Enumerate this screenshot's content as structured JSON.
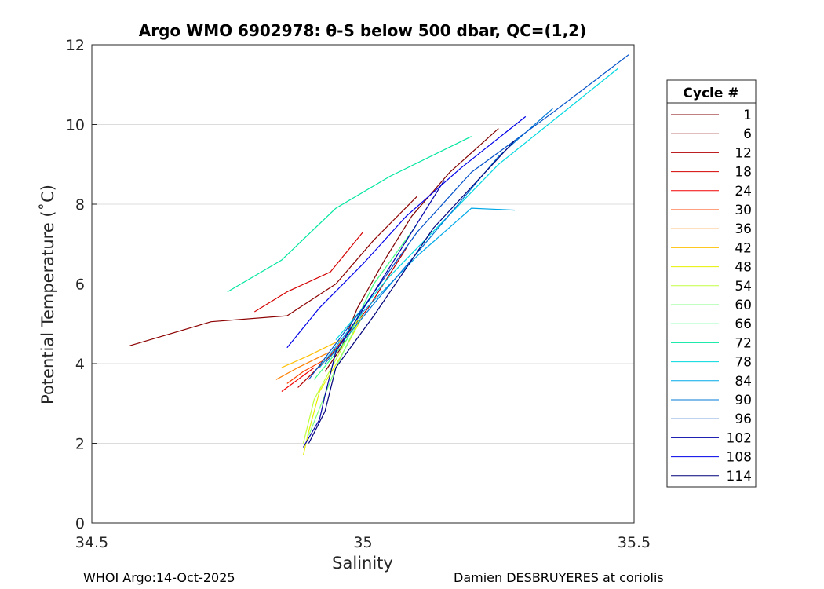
{
  "chart_data": {
    "type": "line",
    "title": "Argo WMO 6902978: θ-S below 500 dbar,  QC=(1,2)",
    "xlabel": "Salinity",
    "ylabel": "Potential Temperature (˚C)",
    "xlim": [
      34.5,
      35.5
    ],
    "ylim": [
      0,
      12
    ],
    "x_ticks": [
      34.5,
      35,
      35.5
    ],
    "x_tick_labels": [
      "34.5",
      "35",
      "35.5"
    ],
    "y_ticks": [
      0,
      2,
      4,
      6,
      8,
      10,
      12
    ],
    "y_tick_labels": [
      "0",
      "2",
      "4",
      "6",
      "8",
      "10",
      "12"
    ],
    "grid": true,
    "legend_title": "Cycle #",
    "legend_position": "right-outside",
    "series": [
      {
        "name": "1",
        "color": "#800000",
        "x": [
          34.93,
          34.96,
          34.99,
          35.04,
          35.09,
          35.16,
          35.25
        ],
        "y": [
          3.8,
          4.4,
          5.4,
          6.6,
          7.7,
          8.8,
          9.9
        ]
      },
      {
        "name": "6",
        "color": "#8c0000",
        "x": [
          34.57,
          34.72,
          34.86,
          34.95,
          35.02,
          35.1
        ],
        "y": [
          4.45,
          5.05,
          5.2,
          6.0,
          7.1,
          8.2
        ]
      },
      {
        "name": "12",
        "color": "#b30000",
        "x": [
          34.88,
          34.94,
          35.01,
          35.08
        ],
        "y": [
          3.4,
          4.2,
          5.4,
          6.9
        ]
      },
      {
        "name": "18",
        "color": "#d40000",
        "x": [
          34.8,
          34.86,
          34.94,
          35.0
        ],
        "y": [
          5.3,
          5.8,
          6.3,
          7.3
        ]
      },
      {
        "name": "24",
        "color": "#f20000",
        "x": [
          34.85,
          34.88,
          34.91
        ],
        "y": [
          3.3,
          3.6,
          3.9
        ]
      },
      {
        "name": "30",
        "color": "#ff4000",
        "x": [
          34.86,
          34.89,
          34.93
        ],
        "y": [
          3.5,
          3.8,
          4.1
        ]
      },
      {
        "name": "36",
        "color": "#ff8000",
        "x": [
          34.84,
          34.88,
          34.94
        ],
        "y": [
          3.6,
          3.9,
          4.3
        ]
      },
      {
        "name": "42",
        "color": "#ffc000",
        "x": [
          34.85,
          34.9,
          34.96
        ],
        "y": [
          3.9,
          4.2,
          4.6
        ]
      },
      {
        "name": "48",
        "color": "#e6f000",
        "x": [
          34.89,
          34.9,
          34.92,
          34.96,
          35.0
        ],
        "y": [
          1.7,
          2.3,
          3.3,
          4.2,
          5.2
        ]
      },
      {
        "name": "54",
        "color": "#c0ff40",
        "x": [
          34.89,
          34.91,
          34.95,
          34.99
        ],
        "y": [
          2.0,
          3.1,
          4.1,
          5.1
        ]
      },
      {
        "name": "60",
        "color": "#80ff80",
        "x": [
          34.9,
          34.95,
          35.0
        ],
        "y": [
          2.2,
          3.9,
          5.3
        ]
      },
      {
        "name": "66",
        "color": "#40ff80",
        "x": [
          34.91,
          34.97,
          35.02,
          35.1
        ],
        "y": [
          3.6,
          4.6,
          6.0,
          7.5
        ]
      },
      {
        "name": "72",
        "color": "#00e6a0",
        "x": [
          34.75,
          34.85,
          34.95,
          35.05,
          35.2
        ],
        "y": [
          5.8,
          6.6,
          7.9,
          8.7,
          9.7
        ]
      },
      {
        "name": "78",
        "color": "#00d8e0",
        "x": [
          34.95,
          35.05,
          35.15,
          35.25,
          35.47
        ],
        "y": [
          4.6,
          6.2,
          7.6,
          9.0,
          11.4
        ]
      },
      {
        "name": "84",
        "color": "#00a8e8",
        "x": [
          34.92,
          35.0,
          35.1,
          35.2,
          35.28
        ],
        "y": [
          3.9,
          5.3,
          6.7,
          7.9,
          7.85
        ]
      },
      {
        "name": "90",
        "color": "#0078d8",
        "x": [
          34.93,
          35.02,
          35.12,
          35.25,
          35.35
        ],
        "y": [
          4.0,
          5.5,
          7.1,
          9.2,
          10.4
        ]
      },
      {
        "name": "96",
        "color": "#0050c8",
        "x": [
          34.9,
          35.0,
          35.1,
          35.2,
          35.35,
          35.49
        ],
        "y": [
          3.6,
          5.4,
          7.3,
          8.8,
          10.3,
          11.75
        ]
      },
      {
        "name": "102",
        "color": "#0000a8",
        "x": [
          34.89,
          34.92,
          34.93,
          34.95,
          35.03,
          35.15
        ],
        "y": [
          1.9,
          2.6,
          3.2,
          4.3,
          6.0,
          8.6
        ]
      },
      {
        "name": "108",
        "color": "#0000e8",
        "x": [
          34.86,
          34.92,
          35.0,
          35.08,
          35.18,
          35.3
        ],
        "y": [
          4.4,
          5.4,
          6.5,
          7.7,
          8.9,
          10.2
        ]
      },
      {
        "name": "114",
        "color": "#00007a",
        "x": [
          34.9,
          34.93,
          34.95,
          35.02,
          35.13,
          35.28
        ],
        "y": [
          2.0,
          2.8,
          3.9,
          5.2,
          7.4,
          9.6
        ]
      }
    ]
  },
  "footer": {
    "left": "WHOI Argo:14-Oct-2025",
    "right": "Damien DESBRUYERES at coriolis"
  }
}
